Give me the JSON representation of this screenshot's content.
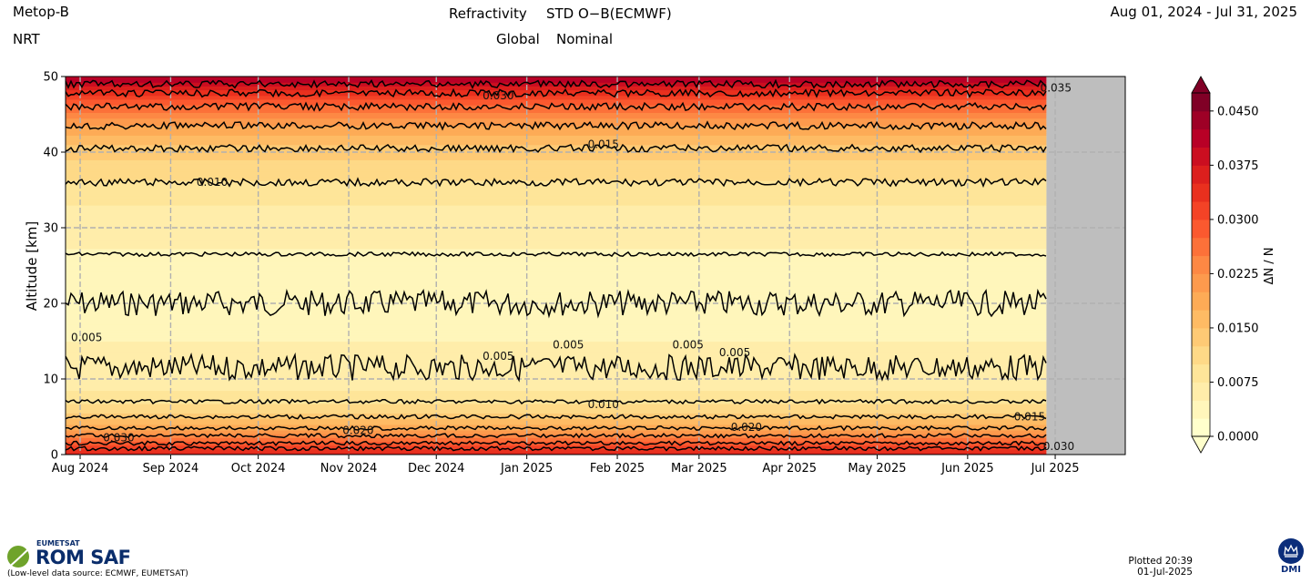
{
  "header": {
    "satellite": "Metop-B",
    "mode": "NRT",
    "parameter": "Refractivity",
    "statistic": "STD O−B(ECMWF)",
    "region": "Global",
    "status": "Nominal",
    "period": "Aug 01, 2024 - Jul 31, 2025"
  },
  "footer": {
    "org_small": "EUMETSAT",
    "org_big": "ROM SAF",
    "source": "(Low-level data source: ECMWF, EUMETSAT)",
    "plotted_line1": "Plotted 20:39",
    "plotted_line2": "01-Jul-2025",
    "dmi": "DMI"
  },
  "colors": {
    "levels": [
      "#ffffcc",
      "#fff6bb",
      "#ffedaa",
      "#fee599",
      "#fed987",
      "#feca75",
      "#febb64",
      "#fdab56",
      "#fd9a4d",
      "#fd8844",
      "#fc7139",
      "#fb592f",
      "#f44326",
      "#e9301e",
      "#dc1f1d",
      "#cb0e20",
      "#b80026",
      "#9e0026",
      "#800026"
    ],
    "no_data": "#bebebe",
    "grid": "#b0b0b0"
  },
  "chart_data": {
    "type": "heatmap",
    "title": "Refractivity   STD O−B(ECMWF)",
    "ylabel": "Altitude [km]",
    "colorbar_label": "ΔN / N",
    "ylim": [
      0,
      50
    ],
    "yticks": [
      0,
      10,
      20,
      30,
      40,
      50
    ],
    "x_range": [
      "2024-07-27",
      "2025-07-25"
    ],
    "data_end": "2025-06-28",
    "xticks": [
      {
        "date": "2024-08-01",
        "label": "Aug 2024"
      },
      {
        "date": "2024-09-01",
        "label": "Sep 2024"
      },
      {
        "date": "2024-10-01",
        "label": "Oct 2024"
      },
      {
        "date": "2024-11-01",
        "label": "Nov 2024"
      },
      {
        "date": "2024-12-01",
        "label": "Dec 2024"
      },
      {
        "date": "2025-01-01",
        "label": "Jan 2025"
      },
      {
        "date": "2025-02-01",
        "label": "Feb 2025"
      },
      {
        "date": "2025-03-01",
        "label": "Mar 2025"
      },
      {
        "date": "2025-04-01",
        "label": "Apr 2025"
      },
      {
        "date": "2025-05-01",
        "label": "May 2025"
      },
      {
        "date": "2025-06-01",
        "label": "Jun 2025"
      },
      {
        "date": "2025-07-01",
        "label": "Jul 2025"
      }
    ],
    "colorbar_range": [
      0,
      0.0475
    ],
    "colorbar_step": 0.0025,
    "colorbar_ticks": [
      "0.0000",
      "0.0075",
      "0.0150",
      "0.0225",
      "0.0300",
      "0.0375",
      "0.0450"
    ],
    "colorbar_extend": "max",
    "profile": [
      {
        "alt": 0,
        "std": 0.036
      },
      {
        "alt": 1,
        "std": 0.031
      },
      {
        "alt": 2,
        "std": 0.026
      },
      {
        "alt": 3,
        "std": 0.021
      },
      {
        "alt": 4,
        "std": 0.017
      },
      {
        "alt": 5,
        "std": 0.014
      },
      {
        "alt": 6,
        "std": 0.0115
      },
      {
        "alt": 7,
        "std": 0.0095
      },
      {
        "alt": 8,
        "std": 0.008
      },
      {
        "alt": 10,
        "std": 0.006
      },
      {
        "alt": 12,
        "std": 0.0052
      },
      {
        "alt": 15,
        "std": 0.005
      },
      {
        "alt": 18,
        "std": 0.0048
      },
      {
        "alt": 21,
        "std": 0.0042
      },
      {
        "alt": 25,
        "std": 0.0043
      },
      {
        "alt": 28,
        "std": 0.0052
      },
      {
        "alt": 30,
        "std": 0.006
      },
      {
        "alt": 33,
        "std": 0.0075
      },
      {
        "alt": 36,
        "std": 0.0098
      },
      {
        "alt": 39,
        "std": 0.0125
      },
      {
        "alt": 41,
        "std": 0.015
      },
      {
        "alt": 43,
        "std": 0.019
      },
      {
        "alt": 45,
        "std": 0.024
      },
      {
        "alt": 47,
        "std": 0.03
      },
      {
        "alt": 48.5,
        "std": 0.036
      },
      {
        "alt": 50,
        "std": 0.043
      }
    ],
    "contours": [
      {
        "level": 0.005,
        "alt": 20
      },
      {
        "level": 0.005,
        "alt": 11.5
      },
      {
        "level": 0.01,
        "alt": 26.5
      },
      {
        "level": 0.01,
        "alt": 7
      },
      {
        "level": 0.015,
        "alt": 36
      },
      {
        "level": 0.015,
        "alt": 5
      },
      {
        "level": 0.02,
        "alt": 40.5
      },
      {
        "level": 0.02,
        "alt": 3.5
      },
      {
        "level": 0.025,
        "alt": 43.5
      },
      {
        "level": 0.025,
        "alt": 2.5
      },
      {
        "level": 0.03,
        "alt": 46
      },
      {
        "level": 0.03,
        "alt": 1.5
      },
      {
        "level": 0.035,
        "alt": 47.8
      },
      {
        "level": 0.035,
        "alt": 0.8
      },
      {
        "level": 0.04,
        "alt": 49
      }
    ],
    "contour_labels": [
      {
        "text": "0.010",
        "date": "2024-09-08",
        "alt": 36
      },
      {
        "text": "0.015",
        "date": "2025-01-20",
        "alt": 41
      },
      {
        "text": "0.030",
        "date": "2024-12-15",
        "alt": 47.5
      },
      {
        "text": "0.035",
        "date": "2025-06-24",
        "alt": 48.5
      },
      {
        "text": "0.005",
        "date": "2024-07-27",
        "alt": 15.5
      },
      {
        "text": "0.005",
        "date": "2024-12-15",
        "alt": 13
      },
      {
        "text": "0.005",
        "date": "2025-01-08",
        "alt": 14.5
      },
      {
        "text": "0.005",
        "date": "2025-02-18",
        "alt": 14.5
      },
      {
        "text": "0.005",
        "date": "2025-03-06",
        "alt": 13.5
      },
      {
        "text": "0.010",
        "date": "2025-01-20",
        "alt": 6.6
      },
      {
        "text": "0.015",
        "date": "2025-06-15",
        "alt": 5
      },
      {
        "text": "0.020",
        "date": "2025-03-10",
        "alt": 3.6
      },
      {
        "text": "0.030",
        "date": "2024-08-07",
        "alt": 2.2
      },
      {
        "text": "0.020",
        "date": "2024-10-28",
        "alt": 3.2
      },
      {
        "text": "0.030",
        "date": "2025-06-25",
        "alt": 1.1
      }
    ]
  }
}
